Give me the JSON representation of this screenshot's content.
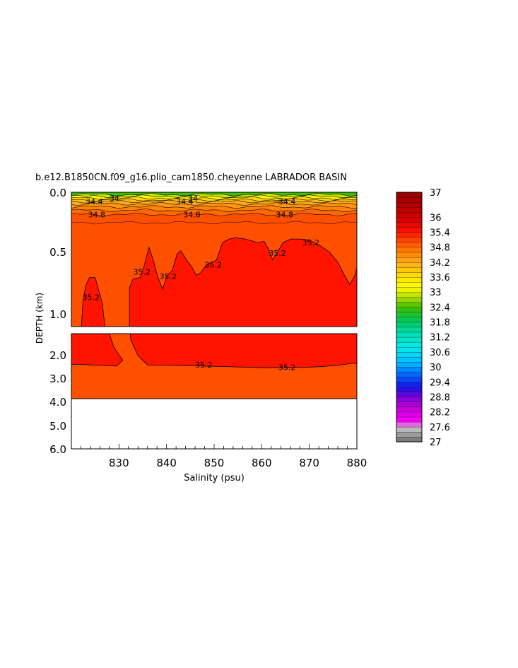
{
  "chart_data": {
    "type": "heatmap",
    "title": "b.e12.B1850CN.f09_g16.plio_cam1850.cheyenne LABRADOR BASIN",
    "xlabel": "Salinity (psu)",
    "ylabel": "DEPTH (km)",
    "xlim": [
      820,
      880
    ],
    "x_ticks": [
      "830",
      "840",
      "850",
      "860",
      "870",
      "880"
    ],
    "y_ticks_upper": [
      "0.0",
      "0.5",
      "1.0"
    ],
    "y_ticks_lower": [
      "2.0",
      "3.0",
      "4.0",
      "5.0",
      "6.0"
    ],
    "upper_panel_ylim_km": [
      0,
      1.15
    ],
    "lower_panel_ylim_km": [
      1.15,
      6.0
    ],
    "ocean_floor_km": 3.85,
    "colorbar": {
      "levels": [
        27,
        27.2,
        27.4,
        27.6,
        27.8,
        28,
        28.2,
        28.4,
        28.6,
        28.8,
        29,
        29.2,
        29.4,
        29.6,
        29.8,
        30,
        30.2,
        30.4,
        30.6,
        30.8,
        31,
        31.2,
        31.4,
        31.6,
        31.8,
        32,
        32.2,
        32.4,
        32.6,
        32.8,
        33,
        33.2,
        33.4,
        33.6,
        33.8,
        34,
        34.2,
        34.4,
        34.6,
        34.8,
        35,
        35.2,
        35.4,
        35.6,
        35.8,
        36,
        36.2,
        36.4,
        36.6,
        36.8,
        37
      ],
      "tick_labels": [
        "37",
        "36",
        "35.4",
        "34.8",
        "34.2",
        "33.6",
        "33",
        "32.4",
        "31.8",
        "31.2",
        "30.6",
        "30",
        "29.4",
        "28.8",
        "28.2",
        "27.6",
        "27"
      ],
      "tick_values": [
        37,
        36,
        35.4,
        34.8,
        34.2,
        33.6,
        33,
        32.4,
        31.8,
        31.2,
        30.6,
        30,
        29.4,
        28.8,
        28.2,
        27.6,
        27
      ]
    },
    "contour_labels": [
      {
        "text": "34",
        "x": 828,
        "depth_km": 0.05
      },
      {
        "text": "34.4",
        "x": 823,
        "depth_km": 0.08
      },
      {
        "text": "34.8",
        "x": 823.5,
        "depth_km": 0.19
      },
      {
        "text": "34",
        "x": 844.5,
        "depth_km": 0.05
      },
      {
        "text": "34.4",
        "x": 842,
        "depth_km": 0.08
      },
      {
        "text": "34.8",
        "x": 843.5,
        "depth_km": 0.19
      },
      {
        "text": "34.4",
        "x": 863.5,
        "depth_km": 0.08
      },
      {
        "text": "34.8",
        "x": 863,
        "depth_km": 0.19
      },
      {
        "text": "35.2",
        "x": 822.3,
        "depth_km": 0.9
      },
      {
        "text": "35.2",
        "x": 833,
        "depth_km": 0.68
      },
      {
        "text": "35.2",
        "x": 838.5,
        "depth_km": 0.72
      },
      {
        "text": "35.2",
        "x": 848,
        "depth_km": 0.62
      },
      {
        "text": "35.2",
        "x": 861.5,
        "depth_km": 0.52
      },
      {
        "text": "35.2",
        "x": 868.5,
        "depth_km": 0.43
      },
      {
        "text": "35.2",
        "x": 846,
        "depth_km": 2.4
      },
      {
        "text": "35.2",
        "x": 863.5,
        "depth_km": 2.5
      }
    ],
    "colors": {
      "deep_orange": "#ff5000",
      "bright_red": "#ff1400",
      "floor": "#ffffff"
    }
  }
}
